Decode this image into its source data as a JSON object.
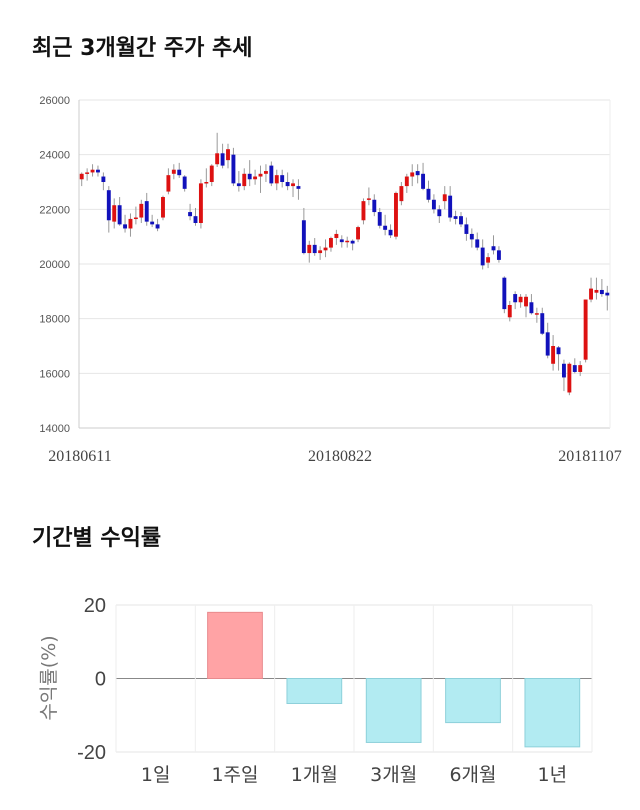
{
  "sections": {
    "price_title": "최근 3개월간 주가 추세",
    "returns_title": "기간별 수익률"
  },
  "chart_data": [
    {
      "type": "candlestick",
      "title": "최근 3개월간 주가 추세",
      "ylim": [
        14000,
        26000
      ],
      "y_ticks": [
        "26000",
        "24000",
        "22000",
        "20000",
        "18000",
        "16000",
        "14000"
      ],
      "x_tick_labels": [
        "20180611",
        "20180822",
        "20181107"
      ],
      "grid": true,
      "colors": {
        "up": "#dd1111",
        "down": "#1111bb",
        "wick": "#999999"
      },
      "ohlc": [
        [
          23100,
          23350,
          22850,
          23300
        ],
        [
          23300,
          23500,
          23050,
          23350
        ],
        [
          23350,
          23650,
          23200,
          23450
        ],
        [
          23450,
          23600,
          23200,
          23350
        ],
        [
          23200,
          23350,
          22700,
          23000
        ],
        [
          22700,
          22850,
          21150,
          21600
        ],
        [
          21550,
          22400,
          21300,
          22150
        ],
        [
          22150,
          22450,
          21400,
          21450
        ],
        [
          21450,
          21800,
          21150,
          21300
        ],
        [
          21300,
          21850,
          21000,
          21650
        ],
        [
          21650,
          22100,
          21450,
          21700
        ],
        [
          21700,
          22350,
          21500,
          22200
        ],
        [
          22300,
          22600,
          21400,
          21550
        ],
        [
          21550,
          21800,
          21350,
          21450
        ],
        [
          21450,
          21650,
          21200,
          21300
        ],
        [
          21700,
          22500,
          21600,
          22450
        ],
        [
          22650,
          23500,
          22550,
          23250
        ],
        [
          23300,
          23650,
          23100,
          23450
        ],
        [
          23450,
          23700,
          23150,
          23250
        ],
        [
          23200,
          23250,
          22650,
          22750
        ],
        [
          21900,
          22200,
          21600,
          21750
        ],
        [
          21750,
          22050,
          21400,
          21500
        ],
        [
          21500,
          23100,
          21300,
          22950
        ],
        [
          22950,
          23500,
          22800,
          23000
        ],
        [
          23000,
          23650,
          22850,
          23600
        ],
        [
          23650,
          24800,
          23550,
          24050
        ],
        [
          24050,
          24400,
          23500,
          23600
        ],
        [
          23800,
          24400,
          23500,
          24200
        ],
        [
          24000,
          24250,
          22850,
          22950
        ],
        [
          22950,
          23400,
          22650,
          22850
        ],
        [
          22850,
          23500,
          22700,
          23300
        ],
        [
          23300,
          23800,
          22850,
          23100
        ],
        [
          23100,
          23450,
          22900,
          23200
        ],
        [
          23200,
          23600,
          22600,
          23300
        ],
        [
          23300,
          23650,
          23000,
          23400
        ],
        [
          23600,
          23750,
          22850,
          22950
        ],
        [
          22950,
          23450,
          22700,
          23250
        ],
        [
          23250,
          23450,
          22800,
          23000
        ],
        [
          23000,
          23350,
          22700,
          22850
        ],
        [
          22850,
          23100,
          22450,
          22950
        ],
        [
          22850,
          23100,
          22350,
          22750
        ],
        [
          21600,
          22050,
          20350,
          20400
        ],
        [
          20400,
          20850,
          20050,
          20700
        ],
        [
          20700,
          20950,
          20300,
          20400
        ],
        [
          20400,
          20650,
          20150,
          20500
        ],
        [
          20500,
          20900,
          20250,
          20600
        ],
        [
          20600,
          21000,
          20450,
          20950
        ],
        [
          20950,
          21250,
          20700,
          21100
        ],
        [
          20900,
          21050,
          20600,
          20800
        ],
        [
          20800,
          21000,
          20600,
          20850
        ],
        [
          20850,
          20900,
          20500,
          20750
        ],
        [
          20900,
          21400,
          20800,
          21350
        ],
        [
          21600,
          22400,
          21450,
          22300
        ],
        [
          22350,
          22800,
          22150,
          22400
        ],
        [
          22350,
          22550,
          21750,
          21900
        ],
        [
          21900,
          22050,
          21300,
          21400
        ],
        [
          21400,
          21800,
          21050,
          21250
        ],
        [
          21250,
          21450,
          20950,
          21050
        ],
        [
          21000,
          22650,
          20900,
          22600
        ],
        [
          22300,
          23000,
          22150,
          22850
        ],
        [
          22850,
          23300,
          22600,
          23200
        ],
        [
          23200,
          23650,
          22850,
          23350
        ],
        [
          23400,
          23650,
          22950,
          23250
        ],
        [
          23300,
          23700,
          22700,
          22750
        ],
        [
          22750,
          23050,
          22250,
          22350
        ],
        [
          22350,
          22550,
          21850,
          22000
        ],
        [
          22000,
          22150,
          21500,
          21750
        ],
        [
          22300,
          22850,
          22000,
          22550
        ],
        [
          22500,
          22850,
          21550,
          21700
        ],
        [
          21750,
          21950,
          21450,
          21650
        ],
        [
          21750,
          21900,
          21350,
          21450
        ],
        [
          21450,
          21700,
          20850,
          21100
        ],
        [
          21100,
          21300,
          20600,
          20900
        ],
        [
          20900,
          21150,
          20500,
          20600
        ],
        [
          20600,
          20900,
          19800,
          19950
        ],
        [
          20050,
          20400,
          19850,
          20250
        ],
        [
          20650,
          21050,
          20350,
          20500
        ],
        [
          20500,
          20650,
          20050,
          20150
        ],
        [
          19500,
          19550,
          18200,
          18350
        ],
        [
          18050,
          18650,
          17900,
          18500
        ],
        [
          18900,
          19000,
          18350,
          18600
        ],
        [
          18600,
          18900,
          18400,
          18800
        ],
        [
          18450,
          18900,
          18050,
          18800
        ],
        [
          18600,
          18900,
          18150,
          18200
        ],
        [
          18150,
          18400,
          17850,
          18200
        ],
        [
          18200,
          18400,
          17400,
          17450
        ],
        [
          17500,
          17850,
          16550,
          16650
        ],
        [
          16350,
          17400,
          16100,
          17000
        ],
        [
          16950,
          17000,
          16100,
          16700
        ],
        [
          16350,
          16500,
          15350,
          15850
        ],
        [
          15300,
          16400,
          15200,
          16350
        ],
        [
          16300,
          16550,
          16000,
          16050
        ],
        [
          16050,
          16450,
          15900,
          16300
        ],
        [
          16500,
          18700,
          16400,
          18700
        ],
        [
          18700,
          19500,
          18600,
          19100
        ],
        [
          18950,
          19500,
          18700,
          19050
        ],
        [
          19050,
          19450,
          18800,
          18900
        ],
        [
          18950,
          19200,
          18300,
          18850
        ]
      ]
    },
    {
      "type": "bar",
      "title": "기간별 수익률",
      "categories": [
        "1일",
        "1주일",
        "1개월",
        "3개월",
        "6개월",
        "1년"
      ],
      "values": [
        0,
        18.0,
        -6.8,
        -17.4,
        -12.0,
        -18.6
      ],
      "ylabel": "수익률(%)",
      "ylim": [
        -20,
        20
      ],
      "y_ticks": [
        "20",
        "0",
        "-20"
      ],
      "grid": true,
      "colors": {
        "positive_fill": "#ffa3a5",
        "positive_stroke": "#e88a8d",
        "negative_fill": "#b2ebf2",
        "negative_stroke": "#8dd0da"
      }
    }
  ]
}
